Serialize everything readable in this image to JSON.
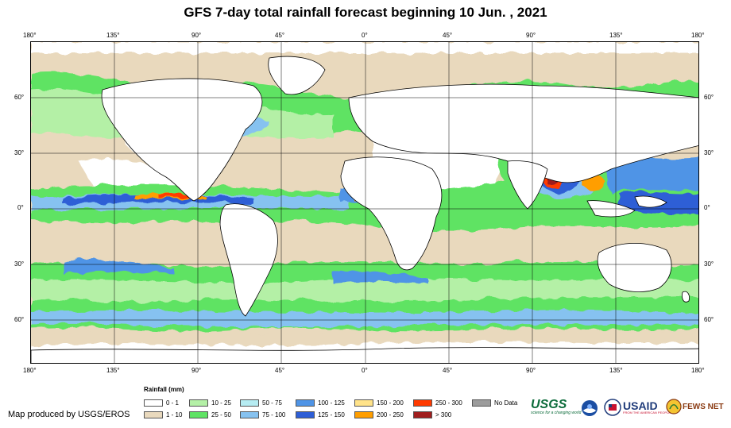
{
  "title": "GFS 7-day total rainfall forecast beginning 10 Jun. , 2021",
  "map": {
    "lon_labels": [
      "180°",
      "135°",
      "90°",
      "45°",
      "0°",
      "45°",
      "90°",
      "135°",
      "180°"
    ],
    "lat_labels": [
      "60°",
      "30°",
      "0°",
      "30°",
      "60°"
    ]
  },
  "legend": {
    "title": "Rainfall (mm)",
    "items": [
      {
        "label": "0 - 1",
        "color": "#ffffff"
      },
      {
        "label": "1 - 10",
        "color": "#e9d9bd"
      },
      {
        "label": "10 - 25",
        "color": "#b4f0a6"
      },
      {
        "label": "25 - 50",
        "color": "#5fe364"
      },
      {
        "label": "50 - 75",
        "color": "#b6ecf2"
      },
      {
        "label": "75 - 100",
        "color": "#86c2f0"
      },
      {
        "label": "100 - 125",
        "color": "#4f94e6"
      },
      {
        "label": "125 - 150",
        "color": "#2e5ed6"
      },
      {
        "label": "150 - 200",
        "color": "#ffe38a"
      },
      {
        "label": "200 - 250",
        "color": "#ff9e00"
      },
      {
        "label": "250 - 300",
        "color": "#ff3a00"
      },
      {
        "label": "> 300",
        "color": "#a01e1e"
      },
      {
        "label": "No Data",
        "color": "#9c9c9c"
      }
    ]
  },
  "credit": "Map produced by USGS/EROS",
  "logos": {
    "usgs": "USGS",
    "usgs_tagline": "science for a changing world",
    "noaa": "NOAA",
    "usaid": "USAID",
    "usaid_tagline": "FROM THE AMERICAN PEOPLE",
    "fews": "FEWS NET"
  }
}
